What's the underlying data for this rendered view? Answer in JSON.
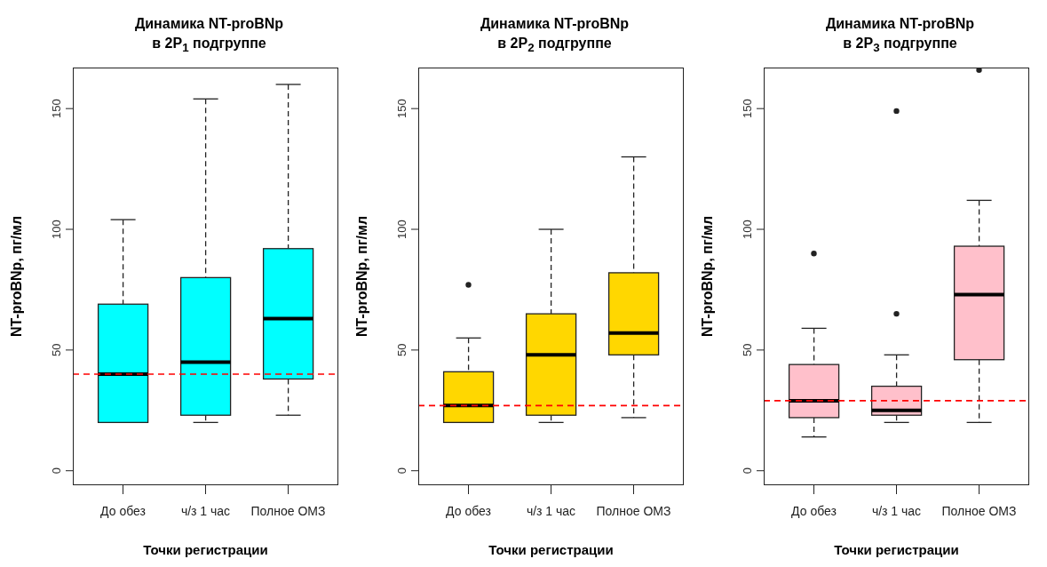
{
  "chart_data": [
    {
      "type": "box",
      "title": "Динамика NT-proBNp\nв 2P$_{1}$ подгруппе",
      "xlabel": "Точки регистрации",
      "ylabel": "NT-proBNp, пг/мл",
      "categories": [
        "До обез",
        "ч/з 1 час",
        "Полное ОМЗ"
      ],
      "ylim": [
        -6,
        167
      ],
      "yticks": [
        0,
        50,
        100,
        150
      ],
      "series": [
        {
          "color": "#00ffff",
          "boxes": [
            {
              "low": 20,
              "q1": 20,
              "median": 40,
              "q3": 69,
              "high": 104
            },
            {
              "low": 20,
              "q1": 23,
              "median": 45,
              "q3": 80,
              "high": 154
            },
            {
              "low": 23,
              "q1": 38,
              "median": 63,
              "q3": 92,
              "high": 160
            }
          ]
        }
      ],
      "ref_lines": [
        {
          "axis": "y",
          "value": 40,
          "color": "#ff0000",
          "line_style": "dashed"
        }
      ]
    },
    {
      "type": "box",
      "title": "Динамика NT-proBNp\nв 2P$_{2}$ подгруппе",
      "xlabel": "Точки регистрации",
      "ylabel": "NT-proBNp, пг/мл",
      "categories": [
        "До обез",
        "ч/з 1 час",
        "Полное ОМЗ"
      ],
      "ylim": [
        -6,
        167
      ],
      "yticks": [
        0,
        50,
        100,
        150
      ],
      "series": [
        {
          "color": "#ffd700",
          "boxes": [
            {
              "low": 20,
              "q1": 20,
              "median": 27,
              "q3": 41,
              "high": 55,
              "outliers": [
                77
              ]
            },
            {
              "low": 20,
              "q1": 23,
              "median": 48,
              "q3": 65,
              "high": 100
            },
            {
              "low": 22,
              "q1": 48,
              "median": 57,
              "q3": 82,
              "high": 130
            }
          ]
        }
      ],
      "ref_lines": [
        {
          "axis": "y",
          "value": 27,
          "color": "#ff0000",
          "line_style": "dashed"
        }
      ]
    },
    {
      "type": "box",
      "title": "Динамика NT-proBNp\nв 2P$_{3}$ подгруппе",
      "xlabel": "Точки регистрации",
      "ylabel": "NT-proBNp, пг/мл",
      "categories": [
        "До обез",
        "ч/з 1 час",
        "Полное ОМЗ"
      ],
      "ylim": [
        -6,
        167
      ],
      "yticks": [
        0,
        50,
        100,
        150
      ],
      "series": [
        {
          "color": "#ffc0cb",
          "boxes": [
            {
              "low": 14,
              "q1": 22,
              "median": 29,
              "q3": 44,
              "high": 59,
              "outliers": [
                90
              ]
            },
            {
              "low": 20,
              "q1": 23,
              "median": 25,
              "q3": 35,
              "high": 48,
              "outliers": [
                65,
                149
              ]
            },
            {
              "low": 20,
              "q1": 46,
              "median": 73,
              "q3": 93,
              "high": 112,
              "outliers": [
                166
              ]
            }
          ]
        }
      ],
      "ref_lines": [
        {
          "axis": "y",
          "value": 29,
          "color": "#ff0000",
          "line_style": "dashed"
        }
      ]
    }
  ]
}
